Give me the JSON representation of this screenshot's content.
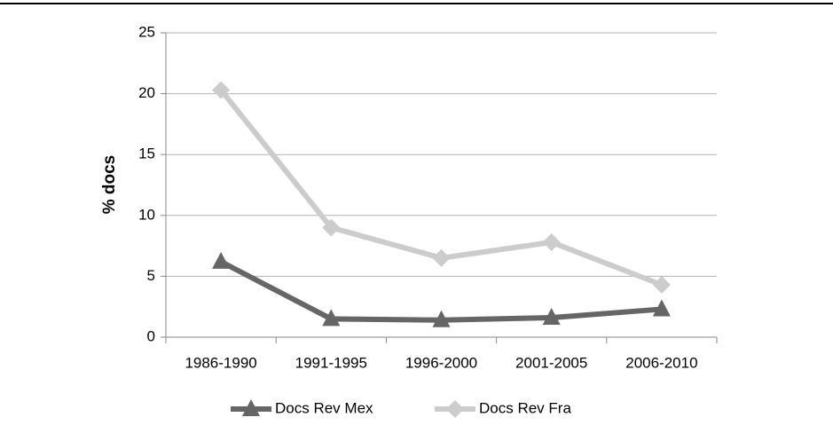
{
  "chart_data": {
    "type": "line",
    "y_label": "% docs",
    "categories": [
      "1986-1990",
      "1991-1995",
      "1996-2000",
      "2001-2005",
      "2006-2010"
    ],
    "series": [
      {
        "name": "Docs Rev Mex",
        "color": "#666666",
        "marker": "triangle",
        "values": [
          6.2,
          1.5,
          1.4,
          1.6,
          2.3
        ]
      },
      {
        "name": "Docs Rev Fra",
        "color": "#cccccc",
        "marker": "diamond",
        "values": [
          20.3,
          9.0,
          6.5,
          7.8,
          4.3
        ]
      }
    ],
    "ylim": [
      0,
      25
    ],
    "yticks": [
      0,
      5,
      10,
      15,
      20,
      25
    ],
    "grid": true,
    "legend": "bottom"
  }
}
